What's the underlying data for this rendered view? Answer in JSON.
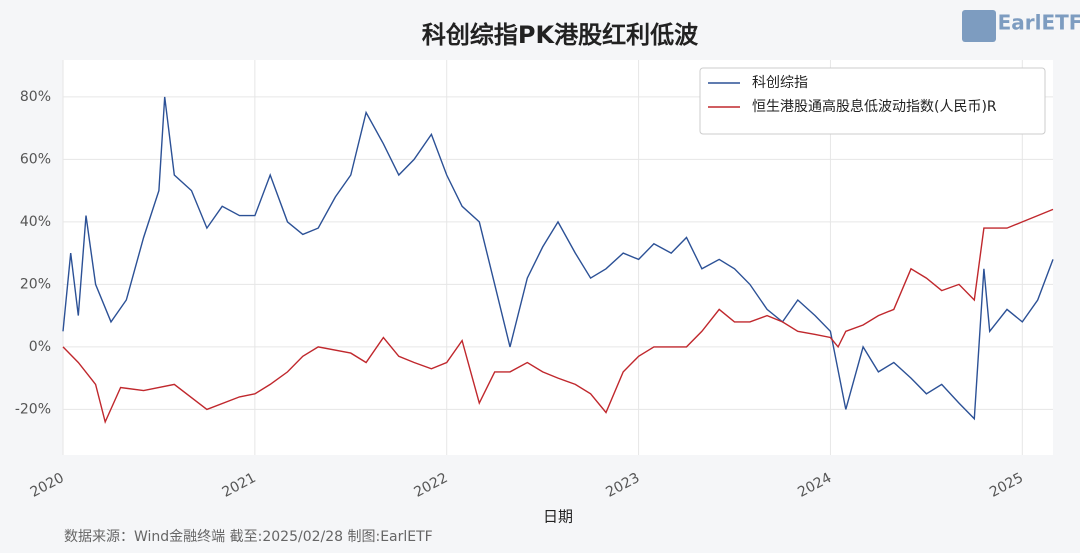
{
  "chart_data": {
    "type": "line",
    "title": "科创综指PK港股红利低波",
    "x_label": "日期",
    "source": "数据来源：Wind金融终端 截至:2025/02/28 制图:EarlETF",
    "logo": "EarlETF",
    "xlim": [
      2020,
      2025.16
    ],
    "xticks": [
      2020,
      2021,
      2022,
      2023,
      2024,
      2025
    ],
    "ylim": [
      -34.6,
      91.8
    ],
    "yticks": [
      {
        "value": -20,
        "label": "-20%"
      },
      {
        "value": 0,
        "label": "0%"
      },
      {
        "value": 20,
        "label": "20%"
      },
      {
        "value": 40,
        "label": "40%"
      },
      {
        "value": 60,
        "label": "60%"
      },
      {
        "value": 80,
        "label": "80%"
      }
    ],
    "grid": true,
    "legend": "upper right",
    "series": [
      {
        "name": "科创综指",
        "color": "#2c5196",
        "x": [
          2020.0,
          2020.04,
          2020.08,
          2020.12,
          2020.17,
          2020.25,
          2020.33,
          2020.42,
          2020.5,
          2020.53,
          2020.58,
          2020.67,
          2020.75,
          2020.83,
          2020.92,
          2021.0,
          2021.08,
          2021.17,
          2021.25,
          2021.33,
          2021.42,
          2021.5,
          2021.58,
          2021.67,
          2021.75,
          2021.83,
          2021.92,
          2022.0,
          2022.08,
          2022.17,
          2022.25,
          2022.33,
          2022.42,
          2022.5,
          2022.58,
          2022.67,
          2022.75,
          2022.83,
          2022.92,
          2023.0,
          2023.08,
          2023.17,
          2023.25,
          2023.33,
          2023.42,
          2023.5,
          2023.58,
          2023.67,
          2023.75,
          2023.83,
          2023.92,
          2024.0,
          2024.08,
          2024.17,
          2024.25,
          2024.33,
          2024.42,
          2024.5,
          2024.58,
          2024.67,
          2024.75,
          2024.8,
          2024.83,
          2024.92,
          2025.0,
          2025.08,
          2025.16
        ],
        "values": [
          5,
          30,
          10,
          42,
          20,
          8,
          15,
          35,
          50,
          80,
          55,
          50,
          38,
          45,
          42,
          42,
          55,
          40,
          36,
          38,
          48,
          55,
          75,
          65,
          55,
          60,
          68,
          55,
          45,
          40,
          20,
          0,
          22,
          32,
          40,
          30,
          22,
          25,
          30,
          28,
          33,
          30,
          35,
          25,
          28,
          25,
          20,
          12,
          8,
          15,
          10,
          5,
          -20,
          0,
          -8,
          -5,
          -10,
          -15,
          -12,
          -18,
          -23,
          25,
          5,
          12,
          8,
          15,
          28
        ]
      },
      {
        "name": "恒生港股通高股息低波动指数(人民币)R",
        "color": "#c0282d",
        "x": [
          2020.0,
          2020.08,
          2020.17,
          2020.22,
          2020.3,
          2020.42,
          2020.58,
          2020.75,
          2020.92,
          2021.0,
          2021.08,
          2021.17,
          2021.25,
          2021.33,
          2021.5,
          2021.58,
          2021.67,
          2021.75,
          2021.83,
          2021.92,
          2022.0,
          2022.08,
          2022.17,
          2022.25,
          2022.33,
          2022.42,
          2022.5,
          2022.58,
          2022.67,
          2022.75,
          2022.83,
          2022.92,
          2023.0,
          2023.08,
          2023.17,
          2023.25,
          2023.33,
          2023.42,
          2023.5,
          2023.58,
          2023.67,
          2023.75,
          2023.83,
          2023.92,
          2024.0,
          2024.04,
          2024.08,
          2024.17,
          2024.25,
          2024.33,
          2024.42,
          2024.5,
          2024.58,
          2024.67,
          2024.75,
          2024.8,
          2024.92,
          2025.0,
          2025.08,
          2025.16
        ],
        "values": [
          0,
          -5,
          -12,
          -24,
          -13,
          -14,
          -12,
          -20,
          -16,
          -15,
          -12,
          -8,
          -3,
          0,
          -2,
          -5,
          3,
          -3,
          -5,
          -7,
          -5,
          2,
          -18,
          -8,
          -8,
          -5,
          -8,
          -10,
          -12,
          -15,
          -21,
          -8,
          -3,
          0,
          0,
          0,
          5,
          12,
          8,
          8,
          10,
          8,
          5,
          4,
          3,
          0,
          5,
          7,
          10,
          12,
          25,
          22,
          18,
          20,
          15,
          38,
          38,
          40,
          42,
          44
        ]
      }
    ]
  }
}
